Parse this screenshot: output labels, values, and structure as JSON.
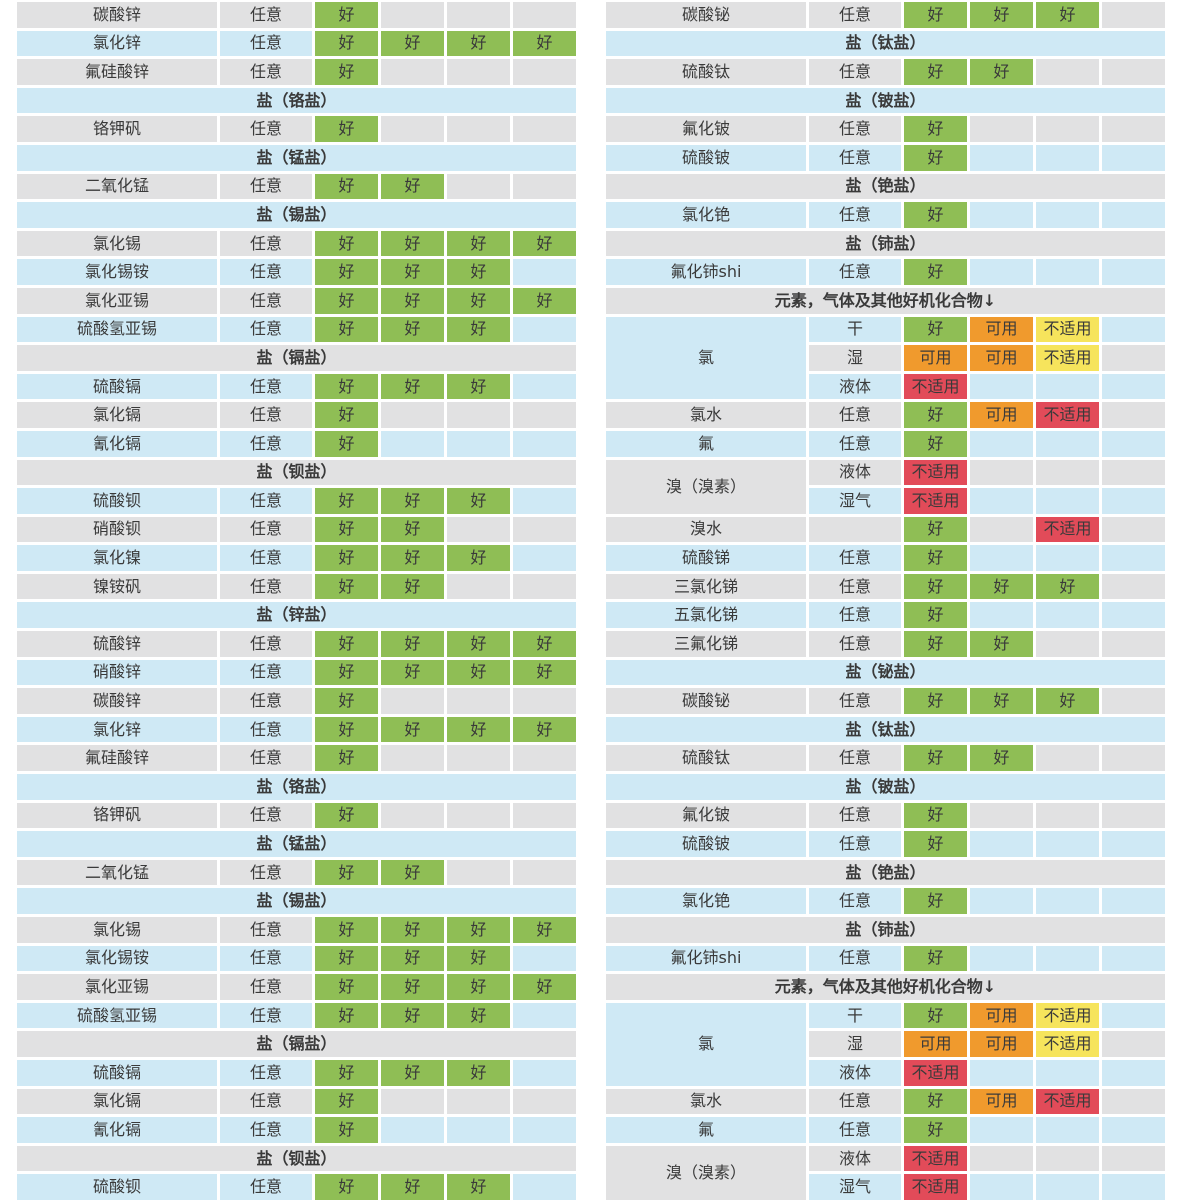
{
  "page": {
    "background": "#ffffff",
    "text_color": "#3a3a3a"
  },
  "row_colors": {
    "odd": "#e1e1e2",
    "even": "#cfe9f5"
  },
  "rating_legend": {
    "G": {
      "label": "好",
      "bg": "#8fbe55"
    },
    "O": {
      "label": "可用",
      "bg": "#f09a2d"
    },
    "Y": {
      "label": "不适用",
      "bg": "#f6e45c"
    },
    "R": {
      "label": "不适用",
      "bg": "#e24b59"
    }
  },
  "tables": {
    "left": {
      "rows": [
        {
          "t": "d",
          "name": "碳酸锌",
          "cond": "任意",
          "r": [
            "G",
            "",
            "",
            ""
          ]
        },
        {
          "t": "d",
          "name": "氯化锌",
          "cond": "任意",
          "r": [
            "G",
            "G",
            "G",
            "G"
          ]
        },
        {
          "t": "d",
          "name": "氟硅酸锌",
          "cond": "任意",
          "r": [
            "G",
            "",
            "",
            ""
          ]
        },
        {
          "t": "h",
          "label": "盐（铬盐）"
        },
        {
          "t": "d",
          "name": "铬钾矾",
          "cond": "任意",
          "r": [
            "G",
            "",
            "",
            ""
          ]
        },
        {
          "t": "h",
          "label": "盐（锰盐）"
        },
        {
          "t": "d",
          "name": "二氧化锰",
          "cond": "任意",
          "r": [
            "G",
            "G",
            "",
            ""
          ]
        },
        {
          "t": "h",
          "label": "盐（锡盐）"
        },
        {
          "t": "d",
          "name": "氯化锡",
          "cond": "任意",
          "r": [
            "G",
            "G",
            "G",
            "G"
          ]
        },
        {
          "t": "d",
          "name": "氯化锡铵",
          "cond": "任意",
          "r": [
            "G",
            "G",
            "G",
            ""
          ]
        },
        {
          "t": "d",
          "name": "氯化亚锡",
          "cond": "任意",
          "r": [
            "G",
            "G",
            "G",
            "G"
          ]
        },
        {
          "t": "d",
          "name": "硫酸氢亚锡",
          "cond": "任意",
          "r": [
            "G",
            "G",
            "G",
            ""
          ]
        },
        {
          "t": "h",
          "label": "盐（镉盐）"
        },
        {
          "t": "d",
          "name": "硫酸镉",
          "cond": "任意",
          "r": [
            "G",
            "G",
            "G",
            ""
          ]
        },
        {
          "t": "d",
          "name": "氯化镉",
          "cond": "任意",
          "r": [
            "G",
            "",
            "",
            ""
          ]
        },
        {
          "t": "d",
          "name": "氰化镉",
          "cond": "任意",
          "r": [
            "G",
            "",
            "",
            ""
          ]
        },
        {
          "t": "h",
          "label": "盐（钡盐）"
        },
        {
          "t": "d",
          "name": "硫酸钡",
          "cond": "任意",
          "r": [
            "G",
            "G",
            "G",
            ""
          ]
        },
        {
          "t": "d",
          "name": "硝酸钡",
          "cond": "任意",
          "r": [
            "G",
            "G",
            "",
            ""
          ]
        },
        {
          "t": "d",
          "name": "氯化镍",
          "cond": "任意",
          "r": [
            "G",
            "G",
            "G",
            ""
          ]
        },
        {
          "t": "d",
          "name": "镍铵矾",
          "cond": "任意",
          "r": [
            "G",
            "G",
            "",
            ""
          ]
        },
        {
          "t": "h",
          "label": "盐（锌盐）"
        },
        {
          "t": "d",
          "name": "硫酸锌",
          "cond": "任意",
          "r": [
            "G",
            "G",
            "G",
            "G"
          ]
        },
        {
          "t": "d",
          "name": "硝酸锌",
          "cond": "任意",
          "r": [
            "G",
            "G",
            "G",
            "G"
          ]
        },
        {
          "t": "d",
          "name": "碳酸锌",
          "cond": "任意",
          "r": [
            "G",
            "",
            "",
            ""
          ]
        },
        {
          "t": "d",
          "name": "氯化锌",
          "cond": "任意",
          "r": [
            "G",
            "G",
            "G",
            "G"
          ]
        },
        {
          "t": "d",
          "name": "氟硅酸锌",
          "cond": "任意",
          "r": [
            "G",
            "",
            "",
            ""
          ]
        },
        {
          "t": "h",
          "label": "盐（铬盐）"
        },
        {
          "t": "d",
          "name": "铬钾矾",
          "cond": "任意",
          "r": [
            "G",
            "",
            "",
            ""
          ]
        },
        {
          "t": "h",
          "label": "盐（锰盐）"
        },
        {
          "t": "d",
          "name": "二氧化锰",
          "cond": "任意",
          "r": [
            "G",
            "G",
            "",
            ""
          ]
        },
        {
          "t": "h",
          "label": "盐（锡盐）"
        },
        {
          "t": "d",
          "name": "氯化锡",
          "cond": "任意",
          "r": [
            "G",
            "G",
            "G",
            "G"
          ]
        },
        {
          "t": "d",
          "name": "氯化锡铵",
          "cond": "任意",
          "r": [
            "G",
            "G",
            "G",
            ""
          ]
        },
        {
          "t": "d",
          "name": "氯化亚锡",
          "cond": "任意",
          "r": [
            "G",
            "G",
            "G",
            "G"
          ]
        },
        {
          "t": "d",
          "name": "硫酸氢亚锡",
          "cond": "任意",
          "r": [
            "G",
            "G",
            "G",
            ""
          ]
        },
        {
          "t": "h",
          "label": "盐（镉盐）"
        },
        {
          "t": "d",
          "name": "硫酸镉",
          "cond": "任意",
          "r": [
            "G",
            "G",
            "G",
            ""
          ]
        },
        {
          "t": "d",
          "name": "氯化镉",
          "cond": "任意",
          "r": [
            "G",
            "",
            "",
            ""
          ]
        },
        {
          "t": "d",
          "name": "氰化镉",
          "cond": "任意",
          "r": [
            "G",
            "",
            "",
            ""
          ]
        },
        {
          "t": "h",
          "label": "盐（钡盐）"
        },
        {
          "t": "d",
          "name": "硫酸钡",
          "cond": "任意",
          "r": [
            "G",
            "G",
            "G",
            ""
          ]
        }
      ]
    },
    "right": {
      "rows": [
        {
          "t": "d",
          "name": "碳酸铋",
          "cond": "任意",
          "r": [
            "G",
            "G",
            "G",
            ""
          ]
        },
        {
          "t": "h",
          "label": "盐（钛盐）"
        },
        {
          "t": "d",
          "name": "硫酸钛",
          "cond": "任意",
          "r": [
            "G",
            "G",
            "",
            ""
          ]
        },
        {
          "t": "h",
          "label": "盐（铍盐）"
        },
        {
          "t": "d",
          "name": "氟化铍",
          "cond": "任意",
          "r": [
            "G",
            "",
            "",
            ""
          ]
        },
        {
          "t": "d",
          "name": "硫酸铍",
          "cond": "任意",
          "r": [
            "G",
            "",
            "",
            ""
          ]
        },
        {
          "t": "h",
          "label": "盐（铯盐）"
        },
        {
          "t": "d",
          "name": "氯化铯",
          "cond": "任意",
          "r": [
            "G",
            "",
            "",
            ""
          ]
        },
        {
          "t": "h",
          "label": "盐（铈盐）"
        },
        {
          "t": "d",
          "name": "氟化铈shi",
          "cond": "任意",
          "r": [
            "G",
            "",
            "",
            ""
          ]
        },
        {
          "t": "h",
          "label": "元素，气体及其他好机化合物↓"
        },
        {
          "t": "d",
          "name": "氯",
          "span": 3,
          "cond": "干",
          "r": [
            "G",
            "O",
            "Y",
            ""
          ]
        },
        {
          "t": "c",
          "cond": "湿",
          "r": [
            "O",
            "O",
            "Y",
            ""
          ]
        },
        {
          "t": "c",
          "cond": "液体",
          "r": [
            "R",
            "",
            "",
            ""
          ]
        },
        {
          "t": "d",
          "name": "氯水",
          "cond": "任意",
          "r": [
            "G",
            "O",
            "R",
            ""
          ]
        },
        {
          "t": "d",
          "name": "氟",
          "cond": "任意",
          "r": [
            "G",
            "",
            "",
            ""
          ]
        },
        {
          "t": "d",
          "name": "溴（溴素）",
          "span": 2,
          "cond": "液体",
          "r": [
            "R",
            "",
            "",
            ""
          ]
        },
        {
          "t": "c",
          "cond": "湿气",
          "r": [
            "R",
            "",
            "",
            ""
          ]
        },
        {
          "t": "d",
          "name": "溴水",
          "cond": "",
          "r": [
            "G",
            "",
            "R",
            ""
          ]
        },
        {
          "t": "d",
          "name": "硫酸锑",
          "cond": "任意",
          "r": [
            "G",
            "",
            "",
            ""
          ]
        },
        {
          "t": "d",
          "name": "三氯化锑",
          "cond": "任意",
          "r": [
            "G",
            "G",
            "G",
            ""
          ]
        },
        {
          "t": "d",
          "name": "五氯化锑",
          "cond": "任意",
          "r": [
            "G",
            "",
            "",
            ""
          ]
        },
        {
          "t": "d",
          "name": "三氟化锑",
          "cond": "任意",
          "r": [
            "G",
            "G",
            "",
            ""
          ]
        },
        {
          "t": "h",
          "label": "盐（铋盐）"
        },
        {
          "t": "d",
          "name": "碳酸铋",
          "cond": "任意",
          "r": [
            "G",
            "G",
            "G",
            ""
          ]
        },
        {
          "t": "h",
          "label": "盐（钛盐）"
        },
        {
          "t": "d",
          "name": "硫酸钛",
          "cond": "任意",
          "r": [
            "G",
            "G",
            "",
            ""
          ]
        },
        {
          "t": "h",
          "label": "盐（铍盐）"
        },
        {
          "t": "d",
          "name": "氟化铍",
          "cond": "任意",
          "r": [
            "G",
            "",
            "",
            ""
          ]
        },
        {
          "t": "d",
          "name": "硫酸铍",
          "cond": "任意",
          "r": [
            "G",
            "",
            "",
            ""
          ]
        },
        {
          "t": "h",
          "label": "盐（铯盐）"
        },
        {
          "t": "d",
          "name": "氯化铯",
          "cond": "任意",
          "r": [
            "G",
            "",
            "",
            ""
          ]
        },
        {
          "t": "h",
          "label": "盐（铈盐）"
        },
        {
          "t": "d",
          "name": "氟化铈shi",
          "cond": "任意",
          "r": [
            "G",
            "",
            "",
            ""
          ]
        },
        {
          "t": "h",
          "label": "元素，气体及其他好机化合物↓"
        },
        {
          "t": "d",
          "name": "氯",
          "span": 3,
          "cond": "干",
          "r": [
            "G",
            "O",
            "Y",
            ""
          ]
        },
        {
          "t": "c",
          "cond": "湿",
          "r": [
            "O",
            "O",
            "Y",
            ""
          ]
        },
        {
          "t": "c",
          "cond": "液体",
          "r": [
            "R",
            "",
            "",
            ""
          ]
        },
        {
          "t": "d",
          "name": "氯水",
          "cond": "任意",
          "r": [
            "G",
            "O",
            "R",
            ""
          ]
        },
        {
          "t": "d",
          "name": "氟",
          "cond": "任意",
          "r": [
            "G",
            "",
            "",
            ""
          ]
        },
        {
          "t": "d",
          "name": "溴（溴素）",
          "span": 2,
          "cond": "液体",
          "r": [
            "R",
            "",
            "",
            ""
          ]
        },
        {
          "t": "c",
          "cond": "湿气",
          "r": [
            "R",
            "",
            "",
            ""
          ]
        }
      ]
    }
  }
}
